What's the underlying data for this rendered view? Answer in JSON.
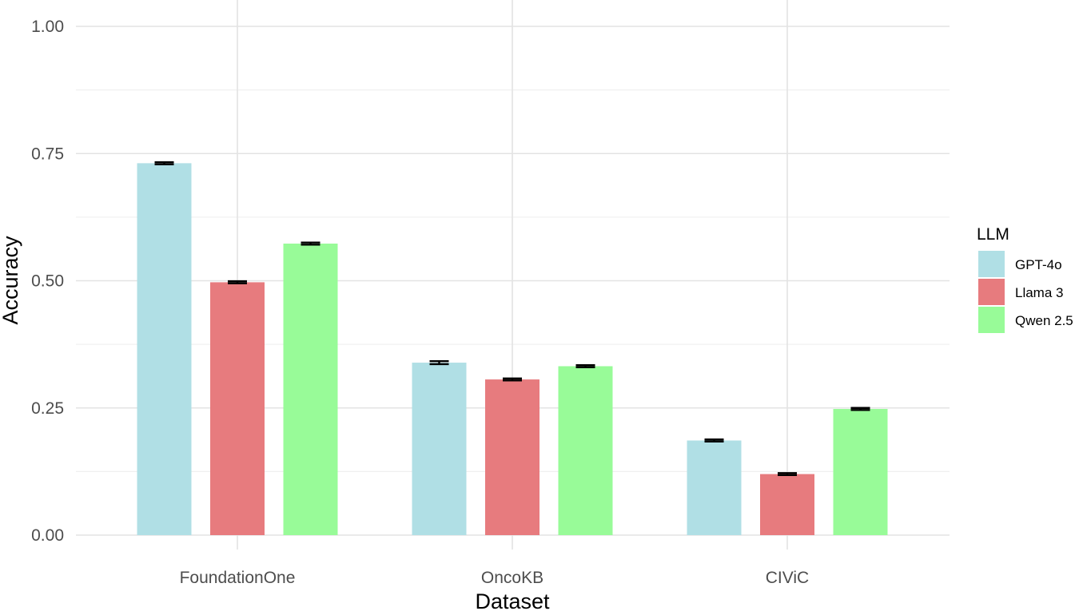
{
  "chart_data": {
    "type": "bar",
    "title": "",
    "xlabel": "Dataset",
    "ylabel": "Accuracy",
    "categories": [
      "FoundationOne",
      "OncoKB",
      "CIViC"
    ],
    "series": [
      {
        "name": "GPT-4o",
        "color": "#b0dfe5",
        "values": [
          0.731,
          0.339,
          0.186
        ],
        "errors": [
          0.002,
          0.003,
          0.002
        ]
      },
      {
        "name": "Llama 3",
        "color": "#e77b7e",
        "values": [
          0.497,
          0.306,
          0.12
        ],
        "errors": [
          0.002,
          0.002,
          0.002
        ]
      },
      {
        "name": "Qwen 2.5",
        "color": "#98fb98",
        "values": [
          0.573,
          0.332,
          0.248
        ],
        "errors": [
          0.002,
          0.002,
          0.002
        ]
      }
    ],
    "ylim": [
      0,
      1
    ],
    "yticks": [
      0,
      0.25,
      0.5,
      0.75,
      1
    ],
    "ytick_labels": [
      "0.00",
      "0.25",
      "0.50",
      "0.75",
      "1.00"
    ],
    "grid": true,
    "legend": {
      "title": "LLM",
      "position": "right"
    }
  }
}
